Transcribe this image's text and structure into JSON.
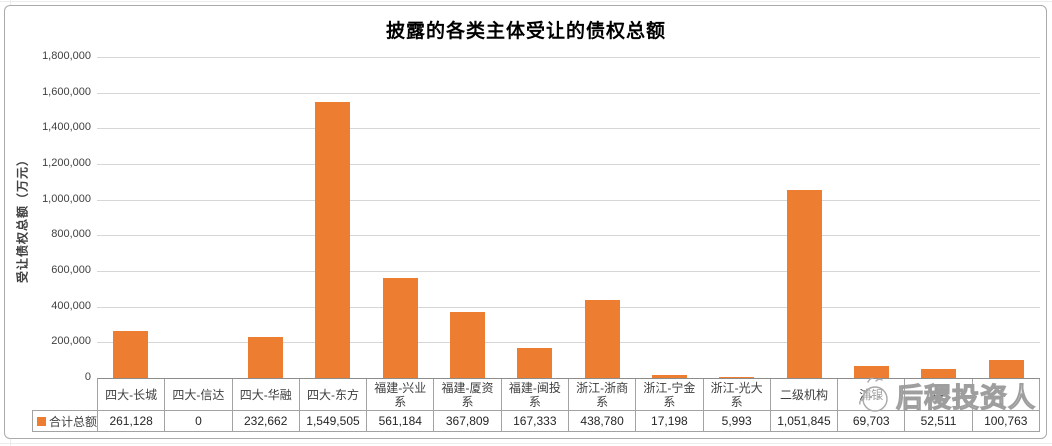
{
  "title": "披露的各类主体受让的债权总额",
  "y_axis_title": "受让债权总额（万元）",
  "legend": {
    "label": "合计总额",
    "swatch_color": "#ED7D31"
  },
  "watermark": {
    "text": "后稷投资人",
    "logo": "cartoon-face-outline"
  },
  "colors": {
    "bar": "#ED7D31",
    "gridline": "#d6d6d6",
    "axis": "#8c8c8c",
    "table_border": "#a3a3a3",
    "text": "#404040"
  },
  "chart_data": {
    "type": "bar",
    "title": "披露的各类主体受让的债权总额",
    "xlabel": "",
    "ylabel": "受让债权总额（万元）",
    "ylim": [
      0,
      1800000
    ],
    "ytick_step": 200000,
    "ytick_labels": [
      "1,800,000",
      "1,600,000",
      "1,400,000",
      "1,200,000",
      "1,000,000",
      "800,000",
      "600,000",
      "400,000",
      "200,000",
      "0"
    ],
    "grid": true,
    "legend_position": "bottom-left-table-cell",
    "series_name": "合计总额",
    "categories": [
      "四大-长城",
      "四大-信达",
      "四大-华融",
      "四大-东方",
      "福建-兴业系",
      "福建-厦资系",
      "福建-闽投系",
      "浙江-浙商系",
      "浙江-宁金系",
      "浙江-光大系",
      "二级机构",
      "浦银",
      "中",
      ""
    ],
    "values": [
      261128,
      0,
      232662,
      1549505,
      561184,
      367809,
      167333,
      438780,
      17198,
      5993,
      1051845,
      69703,
      52511,
      100763
    ],
    "value_labels": [
      "261,128",
      "0",
      "232,662",
      "1,549,505",
      "561,184",
      "367,809",
      "167,333",
      "438,780",
      "17,198",
      "5,993",
      "1,051,845",
      "69,703",
      "52,511",
      "100,763"
    ]
  }
}
